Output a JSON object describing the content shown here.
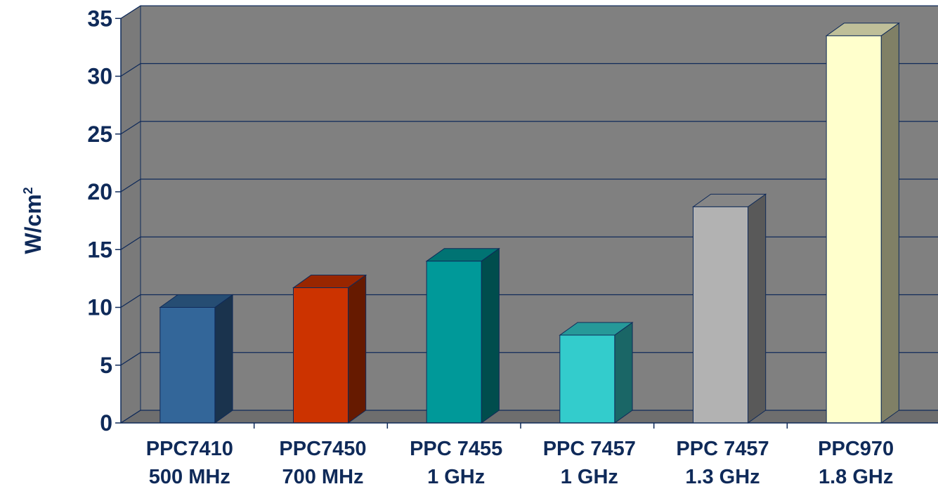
{
  "chart_data": {
    "type": "bar",
    "style": "3d",
    "categories": [
      [
        "PPC7410",
        "500 MHz"
      ],
      [
        "PPC7450",
        "700 MHz"
      ],
      [
        "PPC 7455",
        "1 GHz"
      ],
      [
        "PPC 7457",
        "1 GHz"
      ],
      [
        "PPC 7457",
        "1.3 GHz"
      ],
      [
        "PPC970",
        "1.8 GHz"
      ]
    ],
    "values": [
      10,
      11.7,
      14,
      7.6,
      18.7,
      33.5
    ],
    "bar_colors": [
      "#336699",
      "#cc3300",
      "#009999",
      "#33cccc",
      "#b2b2b2",
      "#ffffcc"
    ],
    "ylabel": "W/cm",
    "ylabel_superscript": "2",
    "ylim": [
      0,
      35
    ],
    "yticks": [
      0,
      5,
      10,
      15,
      20,
      25,
      30,
      35
    ],
    "grid": true,
    "legend": "none",
    "colors": {
      "plot_background": "#808080",
      "text": "#0f2a59",
      "axis": "#0f2a59"
    }
  }
}
